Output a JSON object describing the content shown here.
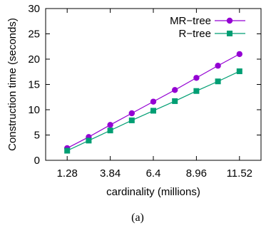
{
  "chart_data": {
    "type": "line",
    "xlabel": "cardinality (millions)",
    "ylabel": "Construction time (seconds)",
    "caption": "(a)",
    "xlim": [
      0.0,
      12.8
    ],
    "ylim": [
      0,
      30
    ],
    "x_ticks": [
      1.28,
      3.84,
      6.4,
      8.96,
      11.52
    ],
    "x_tick_labels": [
      "1.28",
      "3.84",
      "6.4",
      "8.96",
      "11.52"
    ],
    "y_ticks": [
      0,
      5,
      10,
      15,
      20,
      25,
      30
    ],
    "y_tick_labels": [
      "0",
      "5",
      "10",
      "15",
      "20",
      "25",
      "30"
    ],
    "grid": false,
    "legend_position": "top-right",
    "x": [
      1.28,
      2.56,
      3.84,
      5.12,
      6.4,
      7.68,
      8.96,
      10.24,
      11.52
    ],
    "series": [
      {
        "name": "MR−tree",
        "color": "#9400d3",
        "marker": "circle",
        "values": [
          2.4,
          4.6,
          7.0,
          9.3,
          11.6,
          13.9,
          16.3,
          18.7,
          21.0
        ]
      },
      {
        "name": "R−tree",
        "color": "#009e73",
        "marker": "square",
        "values": [
          1.9,
          3.9,
          5.9,
          7.9,
          9.8,
          11.7,
          13.7,
          15.6,
          17.6
        ]
      }
    ]
  }
}
